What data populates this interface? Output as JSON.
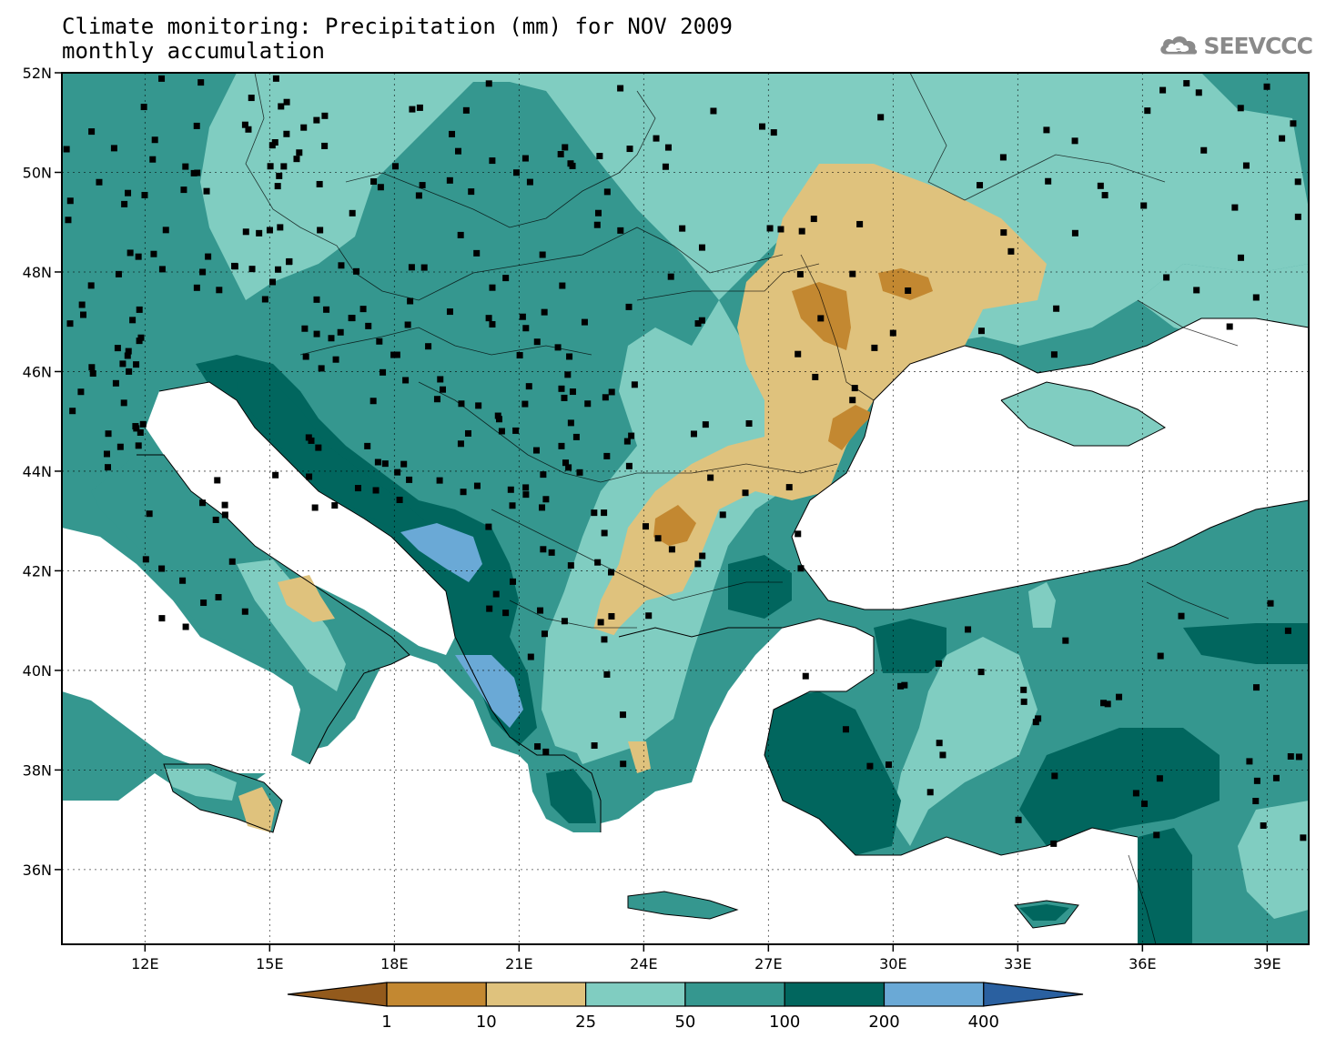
{
  "title": {
    "line1": "Climate monitoring: Precipitation (mm) for NOV 2009",
    "line2": "monthly accumulation"
  },
  "logo": {
    "text": "SEEVCCC",
    "icon": "cloud-icon"
  },
  "map": {
    "lon_range": [
      10,
      40
    ],
    "lat_range": [
      34.5,
      52
    ],
    "lon_ticks": [
      {
        "v": 12,
        "label": "12E"
      },
      {
        "v": 15,
        "label": "15E"
      },
      {
        "v": 18,
        "label": "18E"
      },
      {
        "v": 21,
        "label": "21E"
      },
      {
        "v": 24,
        "label": "24E"
      },
      {
        "v": 27,
        "label": "27E"
      },
      {
        "v": 30,
        "label": "30E"
      },
      {
        "v": 33,
        "label": "33E"
      },
      {
        "v": 36,
        "label": "36E"
      },
      {
        "v": 39,
        "label": "39E"
      }
    ],
    "lat_ticks": [
      {
        "v": 36,
        "label": "36N"
      },
      {
        "v": 38,
        "label": "38N"
      },
      {
        "v": 40,
        "label": "40N"
      },
      {
        "v": 42,
        "label": "42N"
      },
      {
        "v": 44,
        "label": "44N"
      },
      {
        "v": 46,
        "label": "46N"
      },
      {
        "v": 48,
        "label": "48N"
      },
      {
        "v": 50,
        "label": "50N"
      },
      {
        "v": 52,
        "label": "52N"
      }
    ],
    "grid": true
  },
  "colorbar": {
    "levels": [
      "1",
      "10",
      "25",
      "50",
      "100",
      "200",
      "400"
    ],
    "colors": [
      "#935a1c",
      "#c38831",
      "#dfc27d",
      "#80cdc1",
      "#35978f",
      "#01665e",
      "#6aa9d6",
      "#2a60a0"
    ]
  },
  "colors": {
    "sea": "#ffffff",
    "outside": "#ffffff",
    "station": "#000000"
  }
}
